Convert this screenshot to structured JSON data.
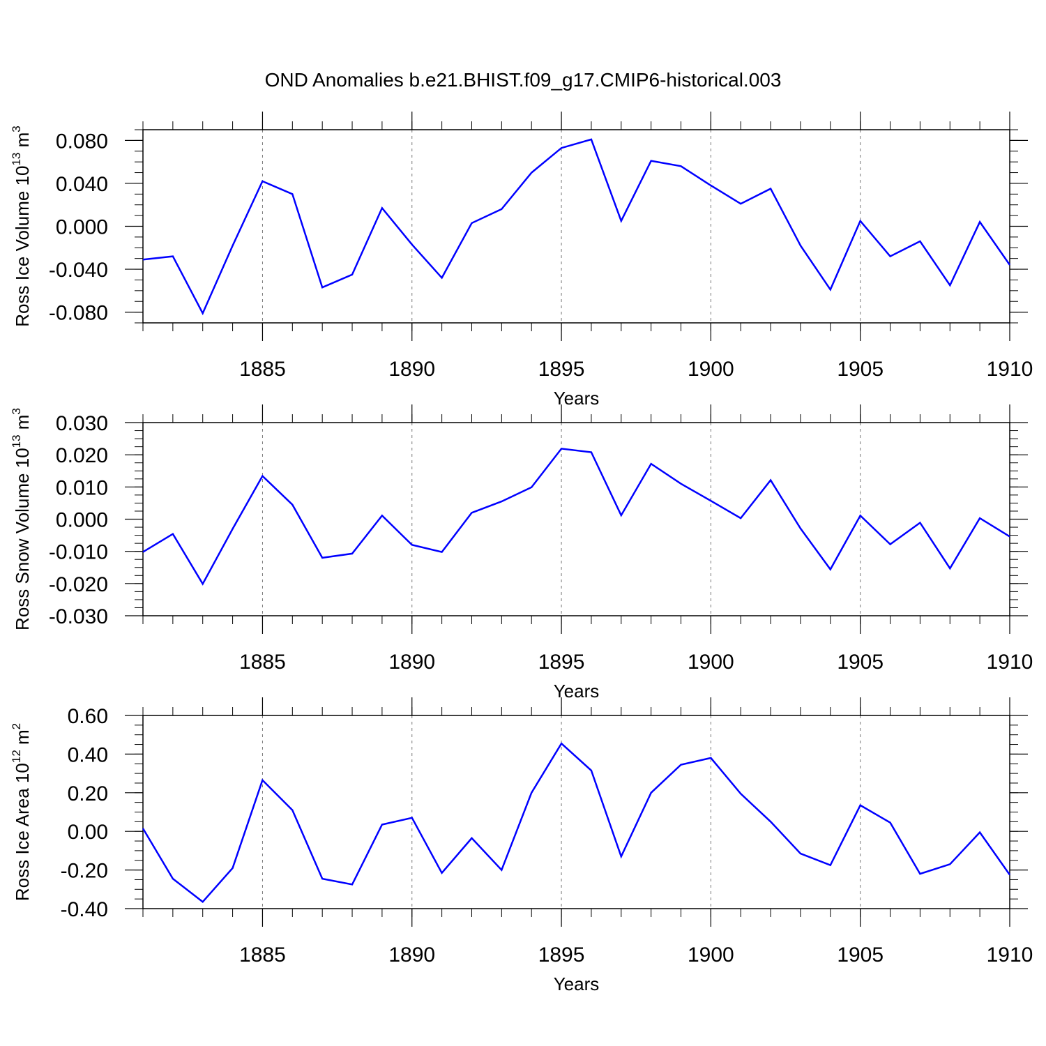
{
  "title": "OND Anomalies b.e21.BHIST.f09_g17.CMIP6-historical.003",
  "line_color": "#0000ff",
  "chart_data": [
    {
      "type": "line",
      "ylabel": {
        "main": "Ross Ice Volume 10",
        "exp": "13",
        "unit": " m",
        "unit_exp": "3"
      },
      "xlabel": "Years",
      "xlim": [
        1881,
        1910
      ],
      "ylim": [
        -0.09,
        0.09
      ],
      "xticks": [
        "1885",
        "1890",
        "1895",
        "1900",
        "1905",
        "1910"
      ],
      "yticks": [
        "0.080",
        "0.040",
        "0.000",
        "-0.040",
        "-0.080"
      ],
      "ytick_values": [
        0.08,
        0.04,
        0.0,
        -0.04,
        -0.08
      ],
      "x": [
        1881,
        1882,
        1883,
        1884,
        1885,
        1886,
        1887,
        1888,
        1889,
        1890,
        1891,
        1892,
        1893,
        1894,
        1895,
        1896,
        1897,
        1898,
        1899,
        1900,
        1901,
        1902,
        1903,
        1904,
        1905,
        1906,
        1907,
        1908,
        1909,
        1910
      ],
      "y": [
        -0.031,
        -0.028,
        -0.081,
        -0.018,
        0.042,
        0.03,
        -0.057,
        -0.045,
        0.017,
        -0.017,
        -0.048,
        0.003,
        0.016,
        0.05,
        0.073,
        0.081,
        0.005,
        0.061,
        0.056,
        0.038,
        0.021,
        0.035,
        -0.018,
        -0.059,
        0.005,
        -0.028,
        -0.014,
        -0.055,
        0.004,
        -0.036
      ],
      "grid": "dashed vertical at major x ticks"
    },
    {
      "type": "line",
      "ylabel": {
        "main": "Ross Snow Volume 10",
        "exp": "13",
        "unit": " m",
        "unit_exp": "3"
      },
      "xlabel": "Years",
      "xlim": [
        1881,
        1910
      ],
      "ylim": [
        -0.03,
        0.03
      ],
      "xticks": [
        "1885",
        "1890",
        "1895",
        "1900",
        "1905",
        "1910"
      ],
      "yticks": [
        "0.030",
        "0.020",
        "0.010",
        "0.000",
        "-0.010",
        "-0.020",
        "-0.030"
      ],
      "ytick_values": [
        0.03,
        0.02,
        0.01,
        0.0,
        -0.01,
        -0.02,
        -0.03
      ],
      "x": [
        1881,
        1882,
        1883,
        1884,
        1885,
        1886,
        1887,
        1888,
        1889,
        1890,
        1891,
        1892,
        1893,
        1894,
        1895,
        1896,
        1897,
        1898,
        1899,
        1900,
        1901,
        1902,
        1903,
        1904,
        1905,
        1906,
        1907,
        1908,
        1909,
        1910
      ],
      "y": [
        -0.0102,
        -0.0046,
        -0.0201,
        -0.003,
        0.0134,
        0.0045,
        -0.012,
        -0.0107,
        0.0011,
        -0.008,
        -0.0102,
        0.002,
        0.0055,
        0.0099,
        0.0219,
        0.0208,
        0.0012,
        0.0172,
        0.011,
        0.0057,
        0.0003,
        0.0121,
        -0.0029,
        -0.0156,
        0.0011,
        -0.0078,
        -0.0011,
        -0.0153,
        0.0003,
        -0.0054
      ],
      "grid": "dashed vertical at major x ticks"
    },
    {
      "type": "line",
      "ylabel": {
        "main": "Ross Ice Area 10",
        "exp": "12",
        "unit": " m",
        "unit_exp": "2"
      },
      "xlabel": "Years",
      "xlim": [
        1881,
        1910
      ],
      "ylim": [
        -0.4,
        0.6
      ],
      "xticks": [
        "1885",
        "1890",
        "1895",
        "1900",
        "1905",
        "1910"
      ],
      "yticks": [
        "0.60",
        "0.40",
        "0.20",
        "0.00",
        "-0.20",
        "-0.40"
      ],
      "ytick_values": [
        0.6,
        0.4,
        0.2,
        0.0,
        -0.2,
        -0.4
      ],
      "x": [
        1881,
        1882,
        1883,
        1884,
        1885,
        1886,
        1887,
        1888,
        1889,
        1890,
        1891,
        1892,
        1893,
        1894,
        1895,
        1896,
        1897,
        1898,
        1899,
        1900,
        1901,
        1902,
        1903,
        1904,
        1905,
        1906,
        1907,
        1908,
        1909,
        1910
      ],
      "y": [
        0.015,
        -0.245,
        -0.365,
        -0.19,
        0.265,
        0.11,
        -0.245,
        -0.275,
        0.035,
        0.07,
        -0.215,
        -0.035,
        -0.2,
        0.2,
        0.455,
        0.315,
        -0.13,
        0.2,
        0.345,
        0.38,
        0.195,
        0.05,
        -0.115,
        -0.175,
        0.135,
        0.045,
        -0.22,
        -0.17,
        -0.005,
        -0.225
      ],
      "grid": "dashed vertical at major x ticks"
    }
  ]
}
